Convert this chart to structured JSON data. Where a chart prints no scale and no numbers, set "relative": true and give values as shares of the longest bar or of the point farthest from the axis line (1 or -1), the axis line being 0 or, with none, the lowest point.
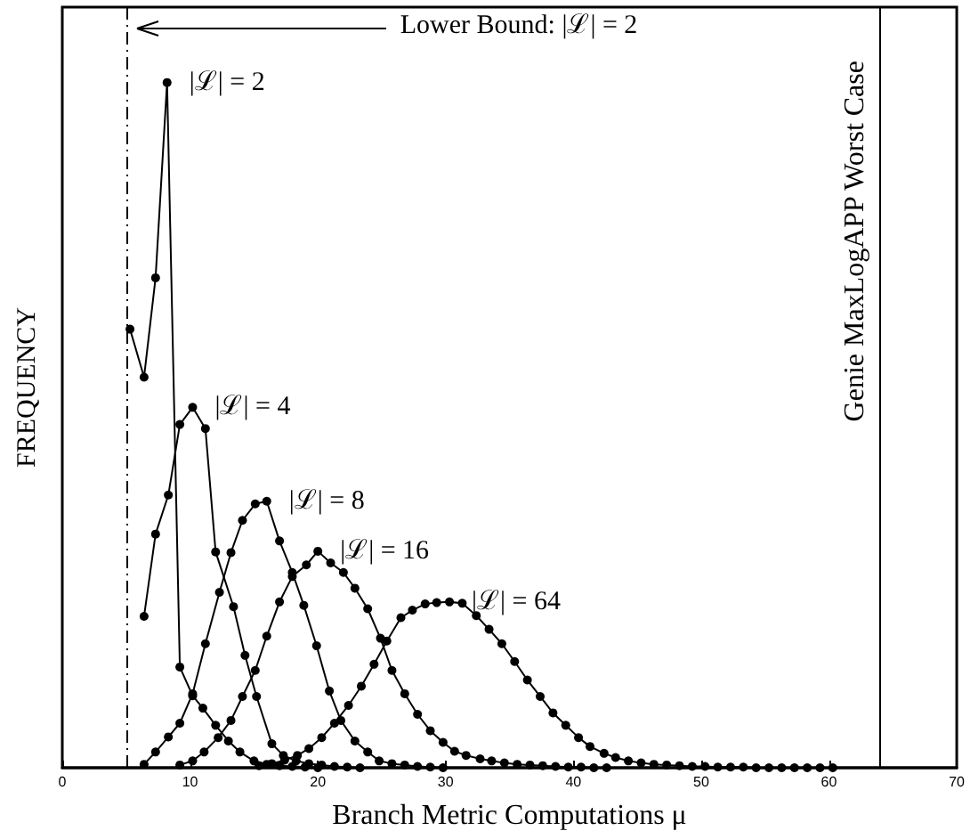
{
  "chart_data": {
    "type": "line",
    "xlabel": "Branch Metric Computations μ",
    "ylabel": "FREQUENCY",
    "relative": true,
    "marker": "circle",
    "line_style": "solid",
    "grid": false,
    "legend": false,
    "xlim": [
      0,
      70
    ],
    "xticks": [
      0,
      10,
      20,
      30,
      40,
      50,
      60,
      70
    ],
    "annotations": [
      "Lower Bound: |ℒ| = 2"
    ],
    "ref_lines": [
      {
        "axis": "x",
        "value": 5,
        "line_style": "dashed",
        "color": "#000000"
      },
      {
        "axis": "x",
        "value": 64,
        "label": "Genie MaxLogAPP Worst Case",
        "line_style": "solid",
        "color": "#000000"
      }
    ],
    "series": [
      {
        "name": "|ℒ| = 2",
        "color": "#000000",
        "x": [
          5.3,
          6.4,
          7.3,
          8.2,
          9.2,
          10.2,
          11.0,
          12.0,
          13.0,
          13.9,
          15.0,
          16.0,
          17.0,
          18.0,
          19.0,
          20.0
        ],
        "values": [
          0.64,
          0.57,
          0.715,
          1.0,
          0.147,
          0.105,
          0.087,
          0.062,
          0.039,
          0.023,
          0.01,
          0.005,
          0.003,
          0.002,
          0.001,
          0
        ]
      },
      {
        "name": "|ℒ| = 4",
        "color": "#000000",
        "x": [
          6.4,
          7.3,
          8.3,
          9.2,
          10.2,
          11.2,
          12.0,
          13.4,
          14.3,
          15.2,
          16.4,
          17.3,
          18.3,
          19.3,
          20.3,
          21.3,
          22.3,
          23.3
        ],
        "values": [
          0.221,
          0.341,
          0.398,
          0.501,
          0.526,
          0.495,
          0.315,
          0.235,
          0.164,
          0.104,
          0.035,
          0.018,
          0.01,
          0.006,
          0.004,
          0.002,
          0.001,
          0
        ]
      },
      {
        "name": "|ℒ| = 8",
        "color": "#000000",
        "x": [
          6.4,
          7.3,
          8.3,
          9.2,
          10.2,
          11.2,
          12.3,
          13.2,
          14.1,
          15.1,
          16.0,
          17.0,
          18.0,
          18.9,
          19.9,
          20.9,
          21.8,
          22.9,
          23.9,
          24.8,
          25.8,
          26.8,
          27.8,
          28.8,
          29.8
        ],
        "values": [
          0.005,
          0.023,
          0.045,
          0.065,
          0.108,
          0.181,
          0.256,
          0.314,
          0.361,
          0.385,
          0.389,
          0.331,
          0.285,
          0.237,
          0.178,
          0.112,
          0.069,
          0.039,
          0.023,
          0.01,
          0.006,
          0.004,
          0.002,
          0.001,
          0
        ]
      },
      {
        "name": "|ℒ| = 16",
        "color": "#000000",
        "x": [
          9.2,
          10.2,
          11.1,
          12.2,
          13.2,
          14.1,
          15.1,
          16.0,
          17.0,
          18.0,
          19.1,
          20.0,
          21.0,
          22.0,
          22.9,
          23.9,
          24.9,
          25.8,
          26.8,
          27.8,
          28.8,
          29.8,
          30.7,
          31.6,
          32.7,
          33.6,
          34.6,
          35.6,
          36.6,
          37.6,
          38.6,
          39.6,
          40.6,
          41.6,
          42.6
        ],
        "values": [
          0.004,
          0.01,
          0.023,
          0.044,
          0.069,
          0.104,
          0.142,
          0.192,
          0.242,
          0.279,
          0.296,
          0.316,
          0.299,
          0.285,
          0.262,
          0.232,
          0.189,
          0.142,
          0.108,
          0.078,
          0.054,
          0.037,
          0.024,
          0.018,
          0.013,
          0.01,
          0.007,
          0.005,
          0.004,
          0.003,
          0.002,
          0.001,
          0.001,
          0,
          0
        ]
      },
      {
        "name": "|ℒ| = 64",
        "color": "#000000",
        "x": [
          15.4,
          16.4,
          17.4,
          18.4,
          19.3,
          20.3,
          21.3,
          22.4,
          23.4,
          24.4,
          25.4,
          26.5,
          27.4,
          28.4,
          29.3,
          30.3,
          31.3,
          32.4,
          33.4,
          34.4,
          35.4,
          36.4,
          37.4,
          38.4,
          39.4,
          40.4,
          41.3,
          42.4,
          43.3,
          44.3,
          45.3,
          46.3,
          47.3,
          48.3,
          49.3,
          50.3,
          51.3,
          52.3,
          53.3,
          54.3,
          55.3,
          56.3,
          57.3,
          58.3,
          59.3,
          60.3
        ],
        "values": [
          0.003,
          0.006,
          0.011,
          0.018,
          0.028,
          0.044,
          0.065,
          0.091,
          0.119,
          0.151,
          0.185,
          0.219,
          0.23,
          0.239,
          0.241,
          0.242,
          0.24,
          0.222,
          0.202,
          0.181,
          0.155,
          0.128,
          0.104,
          0.08,
          0.062,
          0.044,
          0.031,
          0.021,
          0.015,
          0.01,
          0.007,
          0.005,
          0.004,
          0.003,
          0.002,
          0.002,
          0.001,
          0.001,
          0.001,
          0,
          0,
          0,
          0,
          0,
          0,
          0
        ]
      }
    ]
  }
}
